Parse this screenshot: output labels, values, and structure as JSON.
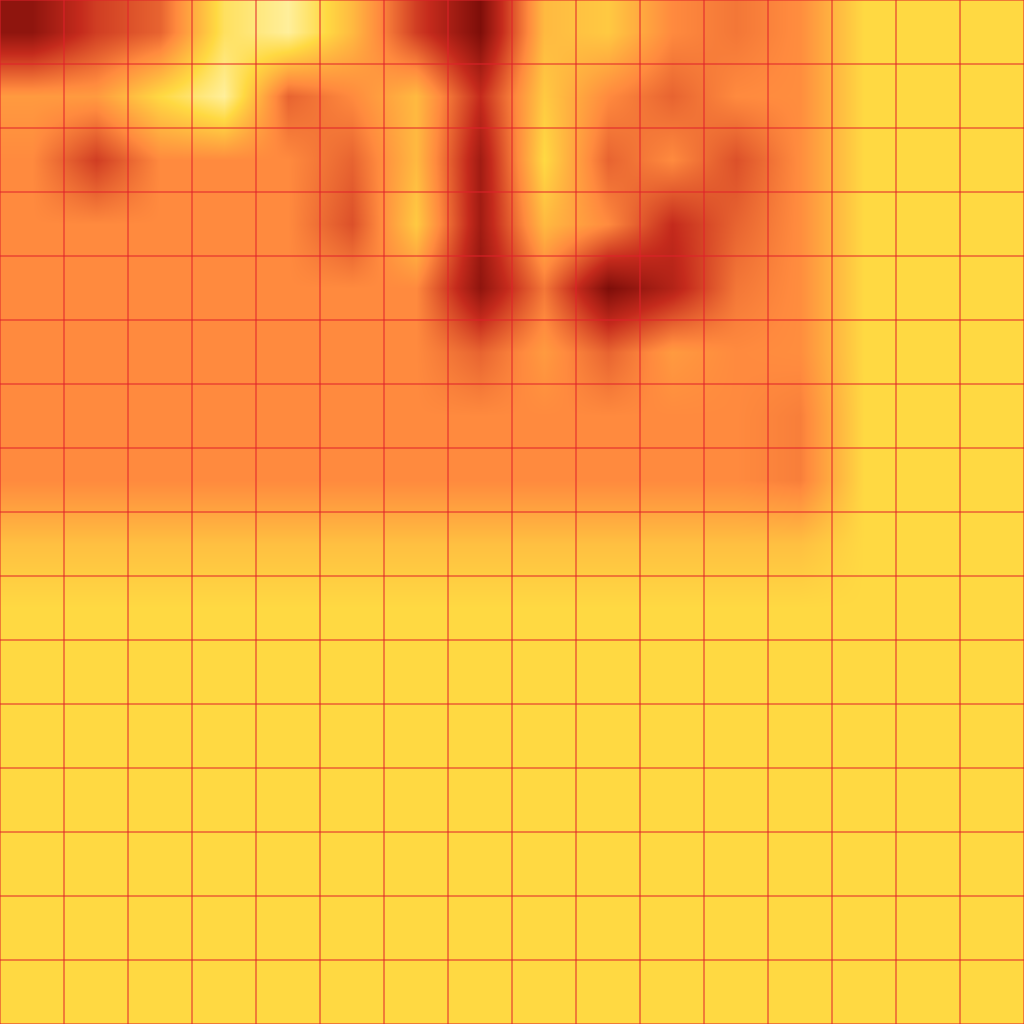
{
  "chart_data": {
    "type": "heatmap",
    "grid": true,
    "tick_labels": false,
    "xlim": [
      0,
      16
    ],
    "ylim": [
      16,
      0
    ],
    "xticks": [
      0,
      1,
      2,
      3,
      4,
      5,
      6,
      7,
      8,
      9,
      10,
      11,
      12,
      13,
      14,
      15,
      16
    ],
    "yticks": [
      0,
      1,
      2,
      3,
      4,
      5,
      6,
      7,
      8,
      9,
      10,
      11,
      12,
      13,
      14,
      15,
      16
    ],
    "zlim": [
      0,
      100
    ],
    "z": [
      [
        15,
        35,
        45,
        85,
        95,
        70,
        35,
        10,
        70,
        75,
        55,
        50,
        56,
        80,
        80,
        80
      ],
      [
        60,
        60,
        80,
        95,
        45,
        55,
        70,
        30,
        75,
        55,
        45,
        55,
        56,
        80,
        80,
        80
      ],
      [
        55,
        35,
        55,
        55,
        55,
        45,
        70,
        20,
        80,
        45,
        55,
        40,
        56,
        80,
        80,
        80
      ],
      [
        55,
        55,
        55,
        55,
        55,
        40,
        75,
        20,
        70,
        55,
        30,
        45,
        56,
        80,
        80,
        80
      ],
      [
        55,
        55,
        55,
        55,
        55,
        55,
        55,
        15,
        50,
        10,
        25,
        50,
        56,
        80,
        80,
        80
      ],
      [
        55,
        55,
        55,
        55,
        55,
        55,
        55,
        45,
        60,
        45,
        60,
        55,
        56,
        80,
        80,
        80
      ],
      [
        55,
        55,
        55,
        55,
        55,
        55,
        55,
        55,
        55,
        55,
        55,
        55,
        52,
        80,
        80,
        80
      ],
      [
        55,
        55,
        55,
        55,
        55,
        55,
        55,
        55,
        55,
        55,
        55,
        55,
        52,
        80,
        80,
        80
      ],
      [
        72,
        72,
        72,
        72,
        72,
        72,
        72,
        72,
        72,
        72,
        72,
        72,
        72,
        80,
        80,
        80
      ],
      [
        80,
        80,
        80,
        80,
        80,
        80,
        80,
        80,
        80,
        80,
        80,
        80,
        80,
        80,
        80,
        80
      ],
      [
        80,
        80,
        80,
        80,
        80,
        80,
        80,
        80,
        80,
        80,
        80,
        80,
        80,
        80,
        80,
        80
      ],
      [
        80,
        80,
        80,
        80,
        80,
        80,
        80,
        80,
        80,
        80,
        80,
        80,
        80,
        80,
        80,
        80
      ],
      [
        80,
        80,
        80,
        80,
        80,
        80,
        80,
        80,
        80,
        80,
        80,
        80,
        80,
        80,
        80,
        80
      ],
      [
        80,
        80,
        80,
        80,
        80,
        80,
        80,
        80,
        80,
        80,
        80,
        80,
        80,
        80,
        80,
        80
      ],
      [
        80,
        80,
        80,
        80,
        80,
        80,
        80,
        80,
        80,
        80,
        80,
        80,
        80,
        80,
        80,
        80
      ],
      [
        80,
        80,
        80,
        80,
        80,
        80,
        80,
        80,
        80,
        80,
        80,
        80,
        80,
        80,
        80,
        80
      ]
    ]
  }
}
